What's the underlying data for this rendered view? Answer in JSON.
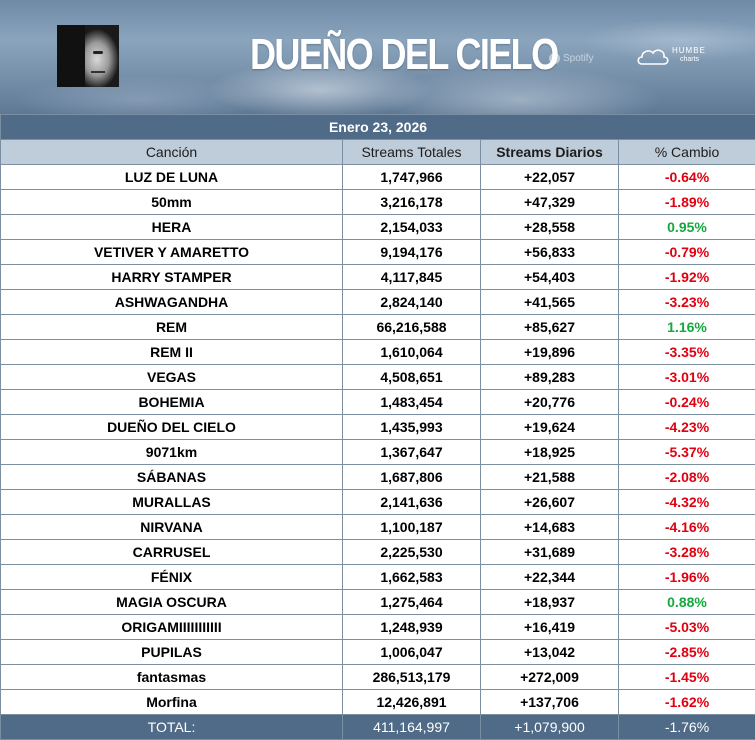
{
  "banner": {
    "title": "DUEÑO DEL CIELO",
    "spotify_label": "Spotify",
    "humbe_label": "HUMBE",
    "charts_label": "charts"
  },
  "colors": {
    "negative": "#e0000f",
    "positive": "#14a83e",
    "header_dark": "#506b87",
    "header_light": "#bfccd9"
  },
  "date": "Enero 23, 2026",
  "columns": [
    "Canción",
    "Streams Totales",
    "Streams Diarios",
    "% Cambio"
  ],
  "rows": [
    {
      "song": "LUZ DE LUNA",
      "total": "1,747,966",
      "daily": "+22,057",
      "change": "-0.64%",
      "dir": "neg"
    },
    {
      "song": "50mm",
      "total": "3,216,178",
      "daily": "+47,329",
      "change": "-1.89%",
      "dir": "neg"
    },
    {
      "song": "HERA",
      "total": "2,154,033",
      "daily": "+28,558",
      "change": "0.95%",
      "dir": "pos"
    },
    {
      "song": "VETIVER Y AMARETTO",
      "total": "9,194,176",
      "daily": "+56,833",
      "change": "-0.79%",
      "dir": "neg"
    },
    {
      "song": "HARRY STAMPER",
      "total": "4,117,845",
      "daily": "+54,403",
      "change": "-1.92%",
      "dir": "neg"
    },
    {
      "song": "ASHWAGANDHA",
      "total": "2,824,140",
      "daily": "+41,565",
      "change": "-3.23%",
      "dir": "neg"
    },
    {
      "song": "REM",
      "total": "66,216,588",
      "daily": "+85,627",
      "change": "1.16%",
      "dir": "pos"
    },
    {
      "song": "REM II",
      "total": "1,610,064",
      "daily": "+19,896",
      "change": "-3.35%",
      "dir": "neg"
    },
    {
      "song": "VEGAS",
      "total": "4,508,651",
      "daily": "+89,283",
      "change": "-3.01%",
      "dir": "neg"
    },
    {
      "song": "BOHEMIA",
      "total": "1,483,454",
      "daily": "+20,776",
      "change": "-0.24%",
      "dir": "neg"
    },
    {
      "song": "DUEÑO DEL CIELO",
      "total": "1,435,993",
      "daily": "+19,624",
      "change": "-4.23%",
      "dir": "neg"
    },
    {
      "song": "9071km",
      "total": "1,367,647",
      "daily": "+18,925",
      "change": "-5.37%",
      "dir": "neg"
    },
    {
      "song": "SÁBANAS",
      "total": "1,687,806",
      "daily": "+21,588",
      "change": "-2.08%",
      "dir": "neg"
    },
    {
      "song": "MURALLAS",
      "total": "2,141,636",
      "daily": "+26,607",
      "change": "-4.32%",
      "dir": "neg"
    },
    {
      "song": "NIRVANA",
      "total": "1,100,187",
      "daily": "+14,683",
      "change": "-4.16%",
      "dir": "neg"
    },
    {
      "song": "CARRUSEL",
      "total": "2,225,530",
      "daily": "+31,689",
      "change": "-3.28%",
      "dir": "neg"
    },
    {
      "song": "FÉNIX",
      "total": "1,662,583",
      "daily": "+22,344",
      "change": "-1.96%",
      "dir": "neg"
    },
    {
      "song": "MAGIA OSCURA",
      "total": "1,275,464",
      "daily": "+18,937",
      "change": "0.88%",
      "dir": "pos"
    },
    {
      "song": "ORIGAMIIIIIIIIIII",
      "total": "1,248,939",
      "daily": "+16,419",
      "change": "-5.03%",
      "dir": "neg"
    },
    {
      "song": "PUPILAS",
      "total": "1,006,047",
      "daily": "+13,042",
      "change": "-2.85%",
      "dir": "neg"
    },
    {
      "song": "fantasmas",
      "total": "286,513,179",
      "daily": "+272,009",
      "change": "-1.45%",
      "dir": "neg"
    },
    {
      "song": "Morfina",
      "total": "12,426,891",
      "daily": "+137,706",
      "change": "-1.62%",
      "dir": "neg"
    }
  ],
  "total": {
    "label": "TOTAL:",
    "total": "411,164,997",
    "daily": "+1,079,900",
    "change": "-1.76%"
  }
}
